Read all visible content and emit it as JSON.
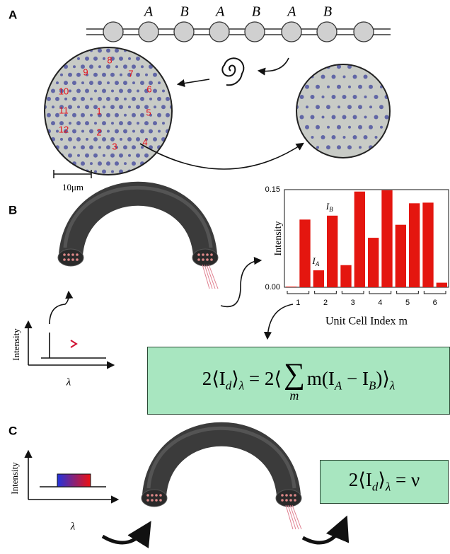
{
  "panels": {
    "a": "A",
    "b": "B",
    "c": "C"
  },
  "chain_labels": [
    "A",
    "B",
    "A",
    "B",
    "A",
    "B"
  ],
  "lattice_labels": [
    "1",
    "2",
    "3",
    "4",
    "5",
    "6",
    "7",
    "8",
    "9",
    "10",
    "11",
    "12"
  ],
  "scale_bar": "10μm",
  "inset_b": {
    "ylabel": "Intensity",
    "xlabel": "λ"
  },
  "inset_c": {
    "ylabel": "Intensity",
    "xlabel": "λ"
  },
  "chart_data": {
    "type": "bar",
    "ylabel": "Intensity",
    "xlabel": "Unit Cell Index m",
    "categories": [
      "1",
      "2",
      "3",
      "4",
      "5",
      "6"
    ],
    "series": [
      {
        "color": "#e4160f",
        "values": [
          0.001,
          0.026,
          0.034,
          0.076,
          0.096,
          0.13
        ]
      },
      {
        "color": "#e4160f",
        "values": [
          0.104,
          0.11,
          0.147,
          0.149,
          0.129,
          0.007
        ]
      }
    ],
    "annotations": [
      {
        "text": "I",
        "sub": "A"
      },
      {
        "text": "I",
        "sub": "B"
      }
    ],
    "ylim": [
      0,
      0.15
    ],
    "yticks": [
      {
        "value": 0,
        "label": "0.00"
      },
      0.15
    ]
  },
  "equation_b": [
    "2⟨I",
    "d",
    "⟩",
    "λ",
    " = 2⟨",
    "∑",
    "m",
    "m(I",
    "A",
    " − I",
    "B",
    ")⟩",
    "λ"
  ],
  "equation_c": [
    "2⟨I",
    "d",
    "⟩",
    "λ",
    " = ν"
  ]
}
